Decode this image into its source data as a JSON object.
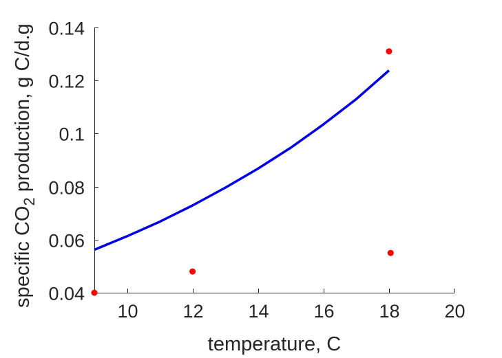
{
  "chart_data": {
    "type": "line",
    "title": "",
    "xlabel": "temperature, C",
    "ylabel": {
      "prefix": "specific CO",
      "subscript": "2",
      "suffix": " production, g C/d.g"
    },
    "xlim": [
      9,
      20
    ],
    "ylim": [
      0.04,
      0.14
    ],
    "x_ticks": [
      10,
      12,
      14,
      16,
      18,
      20
    ],
    "x_tick_labels": [
      "10",
      "12",
      "14",
      "16",
      "18",
      "20"
    ],
    "y_ticks": [
      0.04,
      0.06,
      0.08,
      0.1,
      0.12,
      0.14
    ],
    "y_tick_labels": [
      "0.04",
      "0.06",
      "0.08",
      "0.1",
      "0.12",
      "0.14"
    ],
    "grid": false,
    "series": [
      {
        "type": "line",
        "color": "#0000e6",
        "x": [
          9,
          10,
          11,
          12,
          13,
          14,
          15,
          16,
          17,
          18
        ],
        "y": [
          0.0562,
          0.0613,
          0.0668,
          0.0729,
          0.0796,
          0.0868,
          0.0947,
          0.1035,
          0.113,
          0.1238
        ]
      },
      {
        "type": "scatter",
        "color": "#ff0000",
        "x": [
          9,
          12,
          18,
          18.05
        ],
        "y": [
          0.04,
          0.048,
          0.131,
          0.055
        ]
      }
    ]
  }
}
